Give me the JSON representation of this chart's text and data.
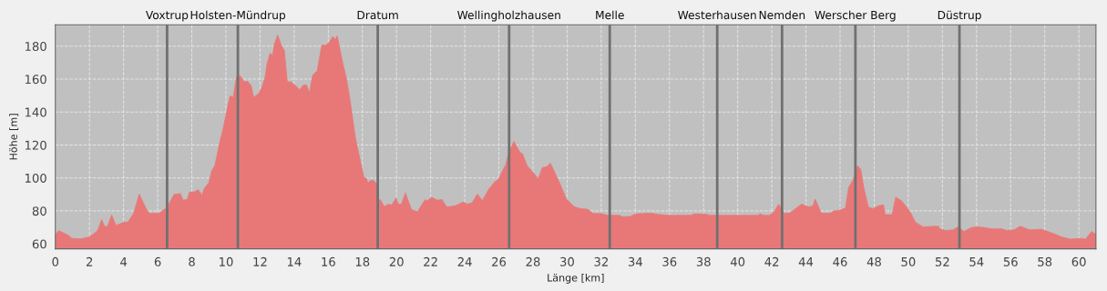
{
  "chart_data": {
    "type": "area",
    "xlabel": "Länge [km]",
    "ylabel": "Höhe [m]",
    "xlim": [
      0,
      61
    ],
    "ylim": [
      57,
      193
    ],
    "xticks": [
      0,
      2,
      4,
      6,
      8,
      10,
      12,
      14,
      16,
      18,
      20,
      22,
      24,
      26,
      28,
      30,
      32,
      34,
      36,
      38,
      40,
      42,
      44,
      46,
      48,
      50,
      52,
      54,
      56,
      58,
      60
    ],
    "yticks": [
      60,
      80,
      100,
      120,
      140,
      160,
      180
    ],
    "grid": true,
    "series": [
      {
        "color": "#e87878",
        "x": [
          0,
          0.2,
          0.49,
          0.79,
          0.97,
          1.48,
          2.0,
          2.31,
          2.47,
          2.72,
          2.86,
          3.05,
          3.3,
          3.55,
          4.0,
          4.27,
          4.59,
          4.92,
          5.17,
          5.39,
          5.53,
          5.89,
          6.07,
          6.52,
          6.97,
          7.33,
          7.48,
          7.73,
          7.87,
          8.14,
          8.38,
          8.59,
          8.74,
          8.99,
          9.17,
          9.35,
          9.64,
          9.86,
          10.13,
          10.25,
          10.43,
          10.61,
          10.83,
          11.08,
          11.26,
          11.48,
          11.62,
          11.93,
          12.11,
          12.29,
          12.41,
          12.59,
          12.74,
          12.83,
          13.03,
          13.24,
          13.42,
          13.6,
          13.82,
          14.09,
          14.32,
          14.54,
          14.72,
          14.9,
          15.08,
          15.35,
          15.62,
          15.84,
          16.07,
          16.27,
          16.41,
          16.52,
          16.85,
          17.06,
          17.24,
          17.6,
          17.87,
          18.1,
          18.23,
          18.32,
          18.5,
          18.68,
          18.83,
          18.91,
          19.05,
          19.27,
          19.54,
          19.71,
          19.98,
          20.1,
          20.29,
          20.52,
          20.87,
          21.23,
          21.68,
          21.76,
          22.07,
          22.39,
          22.66,
          22.96,
          23.46,
          23.9,
          24.17,
          24.44,
          24.74,
          25.03,
          25.42,
          25.78,
          25.95,
          26.4,
          26.58,
          26.88,
          27.24,
          27.38,
          27.65,
          28.0,
          28.31,
          28.54,
          28.81,
          29.02,
          29.52,
          29.96,
          30.41,
          30.77,
          31.21,
          31.52,
          32.01,
          32.37,
          33.08,
          33.23,
          33.71,
          34.01,
          34.87,
          35.49,
          35.94,
          37.27,
          37.45,
          38.16,
          38.34,
          40.0,
          41.16,
          41.34,
          41.51,
          41.87,
          42.14,
          42.4,
          42.71,
          43.03,
          43.74,
          44.19,
          44.42,
          44.54,
          44.9,
          45.43,
          45.61,
          45.97,
          46.32,
          46.5,
          46.77,
          47.03,
          47.21,
          47.39,
          47.66,
          47.93,
          48.28,
          48.55,
          48.64,
          49.05,
          49.26,
          49.62,
          49.97,
          50.15,
          50.42,
          50.86,
          51.75,
          51.84,
          52.2,
          52.64,
          52.91,
          53.27,
          53.71,
          54.07,
          54.43,
          54.96,
          55.49,
          55.76,
          56.21,
          56.56,
          57.1,
          57.81,
          58.17,
          58.7,
          58.97,
          59.5,
          60.12,
          60.39,
          60.75,
          61.0
        ],
        "values": [
          65.7,
          68,
          66.6,
          65,
          63.3,
          63,
          64.2,
          66.6,
          68,
          74.7,
          71,
          70.3,
          77.5,
          71.2,
          73,
          73.4,
          78.6,
          90.2,
          84.7,
          80,
          78.4,
          78.6,
          78.4,
          82,
          90,
          90.5,
          86.5,
          86.9,
          91.5,
          91.5,
          92.8,
          89.6,
          93.7,
          97,
          104.4,
          107.5,
          121.8,
          131,
          144.9,
          149.8,
          149,
          160.9,
          162,
          158.3,
          158.7,
          156,
          149,
          151.3,
          155,
          160.9,
          169.3,
          175.6,
          174.5,
          180.7,
          186.8,
          180.7,
          177.4,
          158.3,
          158.3,
          156,
          153.5,
          156.4,
          156.4,
          151.7,
          162.3,
          165,
          180.7,
          180.4,
          182.6,
          185.9,
          184,
          186.3,
          169.7,
          160.5,
          149.8,
          123.7,
          110.8,
          99.8,
          100,
          97,
          98.7,
          98.3,
          96.4,
          86,
          86.9,
          82.6,
          84.1,
          83.6,
          87.8,
          84.1,
          84.1,
          90.9,
          80.8,
          79.5,
          86.9,
          86,
          88.3,
          86.5,
          86.9,
          82.3,
          83.2,
          85.4,
          84.1,
          85,
          90.2,
          86.3,
          93.3,
          97.9,
          98.8,
          108,
          115.4,
          122.2,
          115.4,
          114.8,
          107.5,
          103.4,
          99.4,
          106.2,
          106.8,
          109,
          97.9,
          87.2,
          82.6,
          81.4,
          81,
          78.4,
          78.4,
          77.3,
          77.3,
          76.4,
          76.6,
          78.2,
          78.6,
          77.7,
          77.3,
          77.3,
          78.2,
          78,
          77.3,
          77.3,
          77.3,
          78.2,
          77.3,
          77.3,
          79.5,
          84.1,
          78.6,
          78.6,
          84.1,
          82.3,
          83.2,
          87.2,
          78.6,
          78.6,
          79.9,
          80.4,
          81.7,
          94.2,
          98.8,
          107.5,
          105.3,
          94.2,
          82.3,
          81.4,
          83.2,
          83.6,
          77.7,
          77.7,
          88.3,
          86,
          81.4,
          78.6,
          73.1,
          70.3,
          70.7,
          69.2,
          68.1,
          68.5,
          70.3,
          67.5,
          69.9,
          70.3,
          69.9,
          69,
          69.2,
          68.1,
          68.5,
          70.7,
          68.5,
          68.8,
          67.5,
          65.5,
          64.2,
          62.9,
          63.3,
          62.9,
          67.5,
          65.7
        ]
      }
    ],
    "ref_lines": [
      {
        "axis": "x",
        "value": 6.55,
        "label": "Voxtrup",
        "color": "#707070"
      },
      {
        "axis": "x",
        "value": 10.7,
        "label": "Holsten-Mündrup",
        "color": "#707070"
      },
      {
        "axis": "x",
        "value": 18.9,
        "label": "Dratum",
        "color": "#707070"
      },
      {
        "axis": "x",
        "value": 26.6,
        "label": "Wellingholzhausen",
        "color": "#707070"
      },
      {
        "axis": "x",
        "value": 32.5,
        "label": "Melle",
        "color": "#707070"
      },
      {
        "axis": "x",
        "value": 38.8,
        "label": "Westerhausen",
        "color": "#707070"
      },
      {
        "axis": "x",
        "value": 42.6,
        "label": "Nemden",
        "color": "#707070"
      },
      {
        "axis": "x",
        "value": 46.9,
        "label": "Werscher Berg",
        "color": "#707070"
      },
      {
        "axis": "x",
        "value": 53.0,
        "label": "Düstrup",
        "color": "#707070"
      }
    ]
  }
}
